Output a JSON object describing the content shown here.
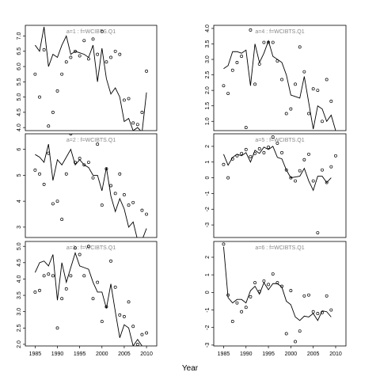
{
  "xlabel": "Year",
  "chart_data": [
    {
      "type": "line",
      "title": "a=1  :  f=WCIBTS.Q1",
      "x": [
        1985,
        1986,
        1987,
        1988,
        1989,
        1990,
        1991,
        1992,
        1993,
        1994,
        1995,
        1996,
        1997,
        1998,
        1999,
        2000,
        2001,
        2002,
        2003,
        2004,
        2005,
        2006,
        2007,
        2008,
        2009,
        2010
      ],
      "xlim": [
        1982.8,
        2012.3
      ],
      "ylim": [
        3.9,
        7.35
      ],
      "yticks": [
        {
          "value": 4,
          "label": "4.0"
        },
        4.5,
        {
          "value": 5,
          "label": "5.0"
        },
        5.5,
        {
          "value": 6,
          "label": "6.0"
        },
        6.5,
        {
          "value": 7,
          "label": "7.0"
        }
      ],
      "series": [
        {
          "style": "line",
          "color": "#000000",
          "values": [
            6.7,
            6.5,
            7.3,
            6.0,
            6.4,
            6.3,
            6.7,
            7.0,
            6.4,
            6.5,
            6.45,
            6.4,
            6.3,
            6.7,
            5.5,
            6.6,
            5.6,
            5.1,
            5.3,
            5.0,
            4.2,
            4.3,
            3.9,
            4.0,
            3.85,
            5.15
          ]
        },
        {
          "style": "points",
          "color": "#000000",
          "values": [
            5.75,
            5.0,
            6.55,
            4.05,
            4.5,
            5.2,
            5.75,
            6.15,
            6.3,
            6.5,
            6.35,
            6.85,
            6.25,
            6.9,
            6.4,
            7.15,
            6.15,
            6.3,
            6.5,
            6.4,
            4.9,
            4.95,
            4.15,
            4.1,
            4.5,
            5.85
          ]
        }
      ]
    },
    {
      "type": "line",
      "title": "a=2  :  f=WCIBTS.Q1",
      "x": [
        1985,
        1986,
        1987,
        1988,
        1989,
        1990,
        1991,
        1992,
        1993,
        1994,
        1995,
        1996,
        1997,
        1998,
        1999,
        2000,
        2001,
        2002,
        2003,
        2004,
        2005,
        2006,
        2007,
        2008,
        2009,
        2010
      ],
      "xlim": [
        1982.8,
        2012.3
      ],
      "ylim": [
        2.6,
        6.6
      ],
      "yticks": [
        3,
        4,
        5,
        6
      ],
      "series": [
        {
          "style": "line",
          "color": "#000000",
          "values": [
            5.8,
            5.7,
            5.5,
            6.2,
            4.8,
            5.6,
            5.4,
            5.7,
            6.0,
            5.4,
            5.6,
            5.4,
            5.3,
            5.0,
            5.0,
            4.4,
            5.3,
            4.2,
            3.6,
            4.1,
            3.7,
            3.0,
            3.2,
            2.5,
            2.5,
            2.95
          ]
        },
        {
          "style": "points",
          "color": "#000000",
          "values": [
            5.2,
            5.05,
            4.65,
            5.85,
            3.9,
            4.0,
            3.3,
            5.05,
            6.6,
            5.5,
            5.65,
            5.4,
            5.5,
            4.9,
            6.2,
            3.85,
            5.25,
            4.6,
            4.3,
            5.05,
            4.25,
            3.85,
            3.95,
            2.55,
            3.65,
            3.5
          ]
        }
      ]
    },
    {
      "type": "line",
      "title": "a=3  :  f=WCIBTS.Q1",
      "x": [
        1985,
        1986,
        1987,
        1988,
        1989,
        1990,
        1991,
        1992,
        1993,
        1994,
        1995,
        1996,
        1997,
        1998,
        1999,
        2000,
        2001,
        2002,
        2003,
        2004,
        2005,
        2006,
        2007,
        2008,
        2009,
        2010
      ],
      "xlim": [
        1982.8,
        2012.3
      ],
      "ylim": [
        1.95,
        5.15
      ],
      "xticks": [
        1985,
        1990,
        1995,
        2000,
        2005,
        2010
      ],
      "yticks": [
        {
          "value": 2,
          "label": "2.0"
        },
        2.5,
        {
          "value": 3,
          "label": "3.0"
        },
        3.5,
        {
          "value": 4,
          "label": "4.0"
        },
        4.5,
        {
          "value": 5,
          "label": "5.0"
        }
      ],
      "series": [
        {
          "style": "line",
          "color": "#000000",
          "values": [
            4.2,
            4.5,
            4.55,
            4.4,
            4.75,
            3.35,
            4.5,
            3.9,
            4.35,
            4.8,
            4.4,
            4.35,
            4.3,
            3.9,
            3.6,
            3.6,
            3.1,
            3.85,
            3.0,
            2.2,
            2.6,
            2.5,
            1.95,
            2.15,
            1.95,
            null
          ]
        },
        {
          "style": "points",
          "color": "#000000",
          "values": [
            3.6,
            3.65,
            4.1,
            4.15,
            4.1,
            2.5,
            3.4,
            3.7,
            4.1,
            4.95,
            4.75,
            4.1,
            5.0,
            3.4,
            3.9,
            2.7,
            3.15,
            4.55,
            3.75,
            2.9,
            2.85,
            3.3,
            2.55,
            2.0,
            2.3,
            2.35
          ]
        }
      ]
    },
    {
      "type": "line",
      "title": "a=4  :  f=WCIBTS.Q1",
      "x": [
        1985,
        1986,
        1987,
        1988,
        1989,
        1990,
        1991,
        1992,
        1993,
        1994,
        1995,
        1996,
        1997,
        1998,
        1999,
        2000,
        2001,
        2002,
        2003,
        2004,
        2005,
        2006,
        2007,
        2008,
        2009,
        2010
      ],
      "xlim": [
        1982.8,
        2012.3
      ],
      "ylim": [
        0.7,
        4.1
      ],
      "yticks": [
        {
          "value": 1,
          "label": "1.0"
        },
        1.5,
        {
          "value": 2,
          "label": "2.0"
        },
        2.5,
        {
          "value": 3,
          "label": "3.0"
        },
        3.5,
        {
          "value": 4,
          "label": "4.0"
        }
      ],
      "series": [
        {
          "style": "line",
          "color": "#000000",
          "values": [
            2.7,
            2.8,
            3.25,
            3.25,
            3.2,
            3.3,
            2.15,
            3.5,
            2.9,
            3.2,
            3.6,
            3.1,
            3.0,
            2.9,
            2.5,
            1.85,
            1.8,
            1.75,
            2.45,
            1.6,
            0.75,
            1.5,
            1.4,
            1.0,
            1.2,
            0.7
          ]
        },
        {
          "style": "points",
          "color": "#000000",
          "values": [
            2.15,
            1.9,
            2.65,
            2.9,
            3.1,
            0.8,
            3.95,
            2.2,
            2.85,
            3.55,
            3.55,
            3.55,
            2.95,
            2.35,
            1.25,
            1.4,
            2.2,
            3.4,
            2.6,
            1.25,
            2.05,
            2.0,
            1.0,
            2.35,
            1.65,
            null
          ]
        }
      ]
    },
    {
      "type": "line",
      "title": "a=5  :  f=WCIBTS.Q1",
      "x": [
        1985,
        1986,
        1987,
        1988,
        1989,
        1990,
        1991,
        1992,
        1993,
        1994,
        1995,
        1996,
        1997,
        1998,
        1999,
        2000,
        2001,
        2002,
        2003,
        2004,
        2005,
        2006,
        2007,
        2008,
        2009,
        2010
      ],
      "xlim": [
        1982.8,
        2012.3
      ],
      "ylim": [
        -3.8,
        2.8
      ],
      "yticks": [
        -3,
        -2,
        -1,
        0,
        1,
        2
      ],
      "series": [
        {
          "style": "line",
          "color": "#000000",
          "values": [
            1.5,
            0.8,
            1.3,
            1.5,
            1.4,
            1.6,
            1.0,
            1.75,
            1.55,
            1.95,
            1.8,
            2.0,
            1.3,
            1.2,
            0.5,
            0.0,
            0.05,
            0.1,
            0.6,
            -0.2,
            -0.8,
            0.1,
            0.1,
            -0.3,
            0.0,
            null
          ]
        },
        {
          "style": "points",
          "color": "#000000",
          "values": [
            0.85,
            0.0,
            1.2,
            1.4,
            1.55,
            1.8,
            1.35,
            1.55,
            1.85,
            1.6,
            1.95,
            2.6,
            2.2,
            1.6,
            0.5,
            0.0,
            -0.2,
            0.45,
            1.15,
            1.5,
            -0.2,
            -3.5,
            0.5,
            -0.3,
            0.7,
            1.4
          ]
        }
      ]
    },
    {
      "type": "line",
      "title": "a=6  :  f=WCIBTS.Q1",
      "x": [
        1985,
        1986,
        1987,
        1988,
        1989,
        1990,
        1991,
        1992,
        1993,
        1994,
        1995,
        1996,
        1997,
        1998,
        1999,
        2000,
        2001,
        2002,
        2003,
        2004,
        2005,
        2006,
        2007,
        2008,
        2009,
        2010
      ],
      "xlim": [
        1982.8,
        2012.3
      ],
      "ylim": [
        -3.05,
        2.9
      ],
      "xticks": [
        1985,
        1990,
        1995,
        2000,
        2005,
        2010
      ],
      "yticks": [
        -3,
        -2,
        -1,
        0,
        1,
        2
      ],
      "series": [
        {
          "style": "line",
          "color": "#000000",
          "values": [
            2.6,
            -0.3,
            -0.6,
            -0.4,
            -0.4,
            -0.6,
            0.1,
            0.35,
            -0.1,
            0.55,
            0.15,
            0.5,
            0.5,
            0.3,
            -0.5,
            -0.7,
            -1.4,
            -1.6,
            -1.35,
            -1.4,
            -1.2,
            -1.6,
            -1.05,
            -1.1,
            -1.4,
            null
          ]
        },
        {
          "style": "points",
          "color": "#000000",
          "values": [
            2.75,
            -0.15,
            -1.65,
            -0.6,
            -1.1,
            -0.85,
            -0.25,
            0.55,
            0.05,
            0.65,
            0.45,
            1.05,
            0.55,
            0.35,
            -2.35,
            0.1,
            -2.8,
            -2.2,
            -0.2,
            -0.15,
            -1.1,
            -1.2,
            -1.15,
            -0.2,
            -1.0,
            null
          ]
        }
      ]
    }
  ]
}
